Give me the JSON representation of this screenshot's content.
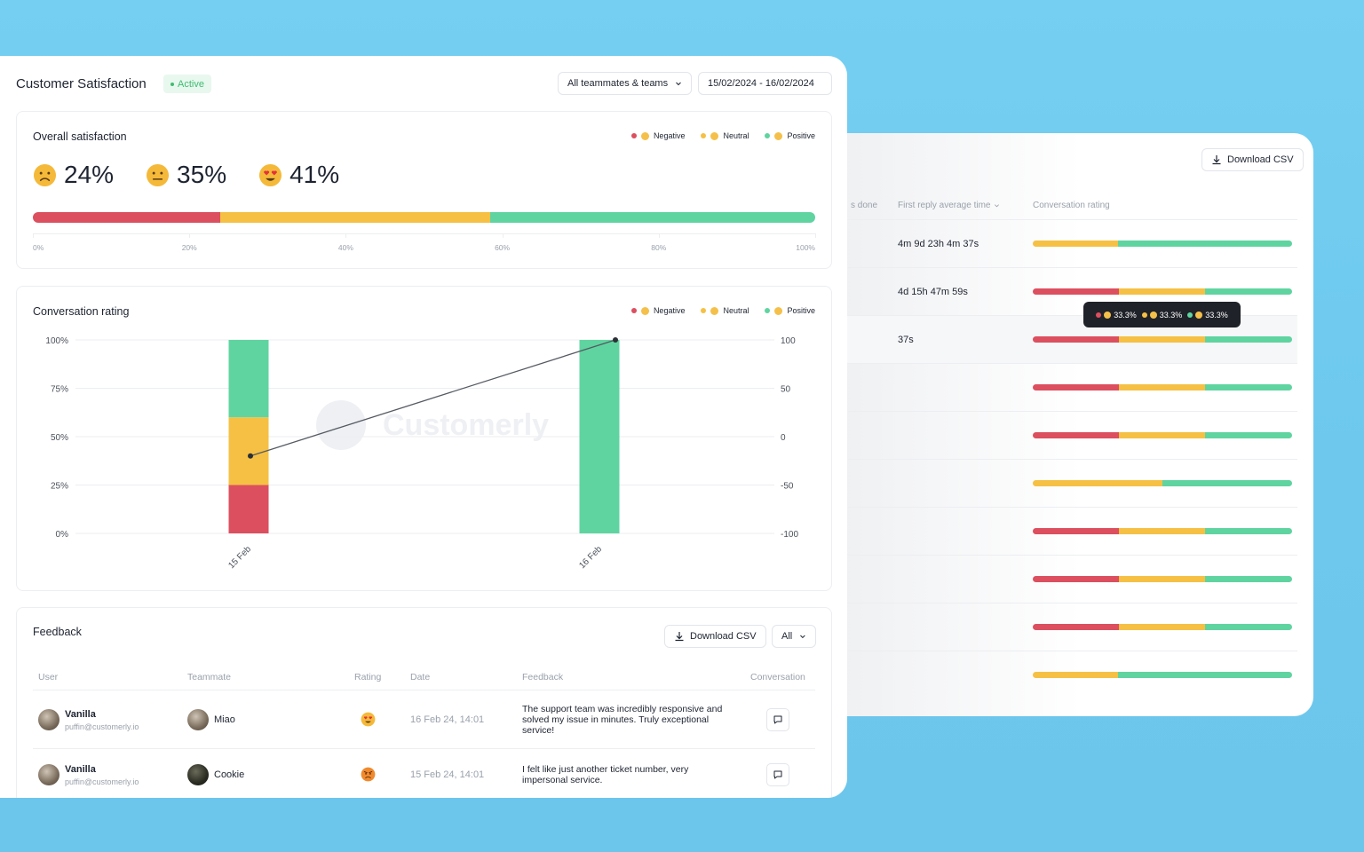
{
  "colors": {
    "negative": "#dc4f5f",
    "neutral": "#f5c044",
    "positive": "#5fd4a0",
    "active": "#3dbd6f"
  },
  "header": {
    "title": "Customer Satisfaction",
    "status_badge": "Active",
    "team_filter": "All teammates & teams",
    "date_range": "15/02/2024 - 16/02/2024"
  },
  "legend": {
    "negative": "Negative",
    "neutral": "Neutral",
    "positive": "Positive"
  },
  "overall": {
    "title": "Overall satisfaction",
    "negative_pct": "24%",
    "neutral_pct": "35%",
    "positive_pct": "41%",
    "bar_fractions": {
      "negative": 0.24,
      "neutral": 0.345,
      "positive": 0.415
    },
    "axis_ticks": [
      "0%",
      "20%",
      "40%",
      "60%",
      "80%",
      "100%"
    ]
  },
  "chart_data": {
    "type": "bar",
    "title": "Conversation rating",
    "categories": [
      "15 Feb",
      "16 Feb"
    ],
    "series": [
      {
        "name": "Negative",
        "values": [
          25,
          0
        ]
      },
      {
        "name": "Neutral",
        "values": [
          35,
          0
        ]
      },
      {
        "name": "Positive",
        "values": [
          40,
          100
        ]
      }
    ],
    "line_series": {
      "values": [
        40,
        100
      ],
      "y_right_ticks": [
        "100",
        "50",
        "0",
        "-50",
        "-100"
      ]
    },
    "y_left_ticks": [
      "100%",
      "75%",
      "50%",
      "25%",
      "0%"
    ],
    "ylim": [
      0,
      100
    ],
    "watermark": "Customerly",
    "grid": true,
    "legend_position": "top-right"
  },
  "feedback": {
    "title": "Feedback",
    "download_label": "Download CSV",
    "filter_value": "All",
    "columns": [
      "User",
      "Teammate",
      "Rating",
      "Date",
      "Feedback",
      "Conversation"
    ],
    "rows": [
      {
        "user_name": "Vanilla",
        "user_email": "puffin@customerly.io",
        "teammate": "Miao",
        "rating": "positive",
        "date": "16 Feb 24, 14:01",
        "feedback": "The support team was incredibly responsive and solved my issue in minutes. Truly exceptional service!"
      },
      {
        "user_name": "Vanilla",
        "user_email": "puffin@customerly.io",
        "teammate": "Cookie",
        "rating": "negative",
        "date": "15 Feb 24, 14:01",
        "feedback": "I felt like just another ticket number, very impersonal service."
      }
    ]
  },
  "team_table": {
    "download_label": "Download CSV",
    "columns": [
      "s done",
      "First reply average time",
      "Conversation rating"
    ],
    "rows": [
      {
        "reply_time": "4m 9d 23h 4m 37s",
        "rating": [
          0,
          0.33,
          0.67
        ]
      },
      {
        "reply_time": "4d 15h 47m 59s",
        "rating": [
          0.333,
          0.333,
          0.334
        ]
      },
      {
        "reply_time": "37s",
        "rating": [
          0.333,
          0.333,
          0.334
        ]
      },
      {
        "reply_time": "",
        "rating": [
          0.333,
          0.333,
          0.334
        ]
      },
      {
        "reply_time": "",
        "rating": [
          0.333,
          0.333,
          0.334
        ]
      },
      {
        "reply_time": "",
        "rating": [
          0,
          0.5,
          0.5
        ]
      },
      {
        "reply_time": "",
        "rating": [
          0.333,
          0.333,
          0.334
        ]
      },
      {
        "reply_time": "",
        "rating": [
          0.333,
          0.333,
          0.334
        ]
      },
      {
        "reply_time": "",
        "rating": [
          0.333,
          0.333,
          0.334
        ]
      },
      {
        "reply_time": "",
        "rating": [
          0,
          0.33,
          0.67
        ]
      }
    ],
    "tooltip": {
      "negative": "33.3%",
      "neutral": "33.3%",
      "positive": "33.3%"
    }
  }
}
